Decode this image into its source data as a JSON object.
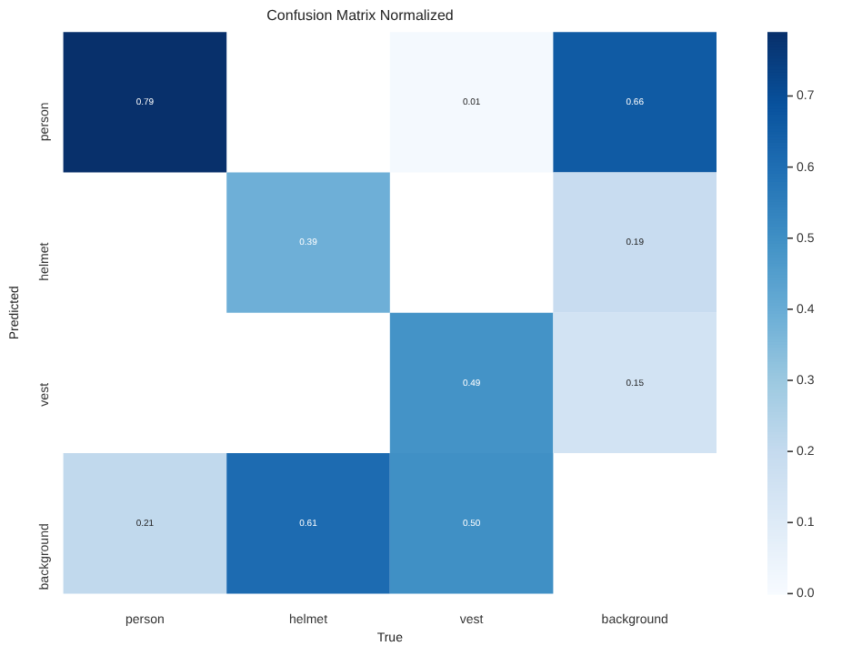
{
  "chart_data": {
    "type": "heatmap",
    "title": "Confusion Matrix Normalized",
    "xlabel": "True",
    "ylabel": "Predicted",
    "categories": [
      "person",
      "helmet",
      "vest",
      "background"
    ],
    "y_categories": [
      "person",
      "helmet",
      "vest",
      "background"
    ],
    "cells": [
      [
        0.79,
        null,
        0.01,
        0.66
      ],
      [
        null,
        0.39,
        null,
        0.19
      ],
      [
        null,
        null,
        0.49,
        0.15
      ],
      [
        0.21,
        0.61,
        0.5,
        null
      ]
    ],
    "cell_labels": [
      [
        "0.79",
        null,
        "0.01",
        "0.66"
      ],
      [
        null,
        "0.39",
        null,
        "0.19"
      ],
      [
        null,
        null,
        "0.49",
        "0.15"
      ],
      [
        "0.21",
        "0.61",
        "0.50",
        null
      ]
    ],
    "clim": [
      0,
      0.79
    ],
    "cticks": [
      {
        "value": 0,
        "label": "0.0"
      },
      {
        "value": 0.1,
        "label": "0.1"
      },
      {
        "value": 0.2,
        "label": "0.2"
      },
      {
        "value": 0.3,
        "label": "0.3"
      },
      {
        "value": 0.4,
        "label": "0.4"
      },
      {
        "value": 0.5,
        "label": "0.5"
      },
      {
        "value": 0.6,
        "label": "0.6"
      },
      {
        "value": 0.7,
        "label": "0.7"
      }
    ],
    "data_labels": true
  }
}
